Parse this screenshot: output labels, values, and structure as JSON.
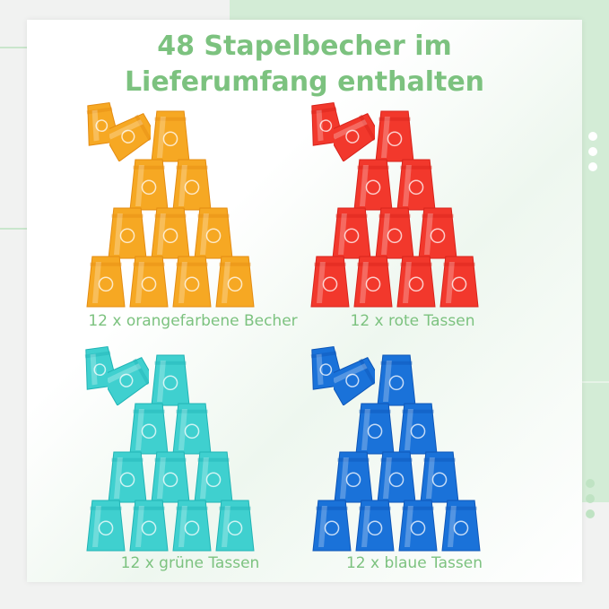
{
  "title_line1": "48 Stapelbecher im",
  "title_line2": "Lieferumfang enthalten",
  "groups": [
    {
      "label": "12 x orangefarbene Becher",
      "color": "#f6a823",
      "dark": "#e48c12"
    },
    {
      "label": "12 x rote Tassen",
      "color": "#f2382c",
      "dark": "#d8231b"
    },
    {
      "label": "12 x grüne Tassen",
      "color": "#3fd0cf",
      "dark": "#21b4b5"
    },
    {
      "label": "12 x blaue Tassen",
      "color": "#1a72d9",
      "dark": "#0e56b8"
    }
  ],
  "dot_colors": {
    "top": "#ffffff",
    "bottom": "#bfe3c3"
  }
}
